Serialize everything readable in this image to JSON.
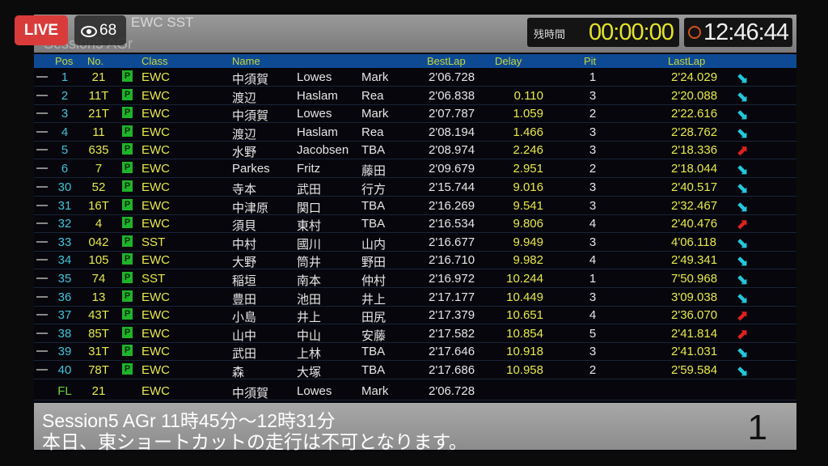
{
  "overlay": {
    "live_label": "LIVE",
    "viewer_count": "68"
  },
  "header": {
    "category": "EWC SST",
    "session": "Session5 AGr",
    "remaining_label": "残時間",
    "remaining_time": "00:00:00",
    "clock_time": "12:46:44"
  },
  "columns": {
    "pos": "Pos",
    "no": "No.",
    "class": "Class",
    "name": "Name",
    "bestlap": "BestLap",
    "delay": "Delay",
    "pit": "Pit",
    "lastlap": "LastLap"
  },
  "colors": {
    "trend_down": "#22c8dc",
    "trend_up": "#e02020",
    "accent_yellow": "#e8e84a",
    "header_blue": "#0e4a94"
  },
  "rows": [
    {
      "pos": "1",
      "no": "21",
      "p": "P",
      "class": "EWC",
      "n1": "中須賀",
      "n2": "Lowes",
      "n3": "Mark",
      "best": "2'06.728",
      "delay": "",
      "pit": "1",
      "last": "2'24.029",
      "trend": "down"
    },
    {
      "pos": "2",
      "no": "11T",
      "p": "P",
      "class": "EWC",
      "n1": "渡辺",
      "n2": "Haslam",
      "n3": "Rea",
      "best": "2'06.838",
      "delay": "0.110",
      "pit": "3",
      "last": "2'20.088",
      "trend": "down"
    },
    {
      "pos": "3",
      "no": "21T",
      "p": "P",
      "class": "EWC",
      "n1": "中須賀",
      "n2": "Lowes",
      "n3": "Mark",
      "best": "2'07.787",
      "delay": "1.059",
      "pit": "2",
      "last": "2'22.616",
      "trend": "down"
    },
    {
      "pos": "4",
      "no": "11",
      "p": "P",
      "class": "EWC",
      "n1": "渡辺",
      "n2": "Haslam",
      "n3": "Rea",
      "best": "2'08.194",
      "delay": "1.466",
      "pit": "3",
      "last": "2'28.762",
      "trend": "down"
    },
    {
      "pos": "5",
      "no": "635",
      "p": "P",
      "class": "EWC",
      "n1": "水野",
      "n2": "Jacobsen",
      "n3": "TBA",
      "best": "2'08.974",
      "delay": "2.246",
      "pit": "3",
      "last": "2'18.336",
      "trend": "up"
    },
    {
      "pos": "6",
      "no": "7",
      "p": "P",
      "class": "EWC",
      "n1": "Parkes",
      "n2": "Fritz",
      "n3": "藤田",
      "best": "2'09.679",
      "delay": "2.951",
      "pit": "2",
      "last": "2'18.044",
      "trend": "down"
    },
    {
      "pos": "30",
      "no": "52",
      "p": "P",
      "class": "EWC",
      "n1": "寺本",
      "n2": "武田",
      "n3": "行方",
      "best": "2'15.744",
      "delay": "9.016",
      "pit": "3",
      "last": "2'40.517",
      "trend": "down"
    },
    {
      "pos": "31",
      "no": "16T",
      "p": "P",
      "class": "EWC",
      "n1": "中津原",
      "n2": "関口",
      "n3": "TBA",
      "best": "2'16.269",
      "delay": "9.541",
      "pit": "3",
      "last": "2'32.467",
      "trend": "down"
    },
    {
      "pos": "32",
      "no": "4",
      "p": "P",
      "class": "EWC",
      "n1": "須貝",
      "n2": "東村",
      "n3": "TBA",
      "best": "2'16.534",
      "delay": "9.806",
      "pit": "4",
      "last": "2'40.476",
      "trend": "up"
    },
    {
      "pos": "33",
      "no": "042",
      "p": "P",
      "class": "SST",
      "n1": "中村",
      "n2": "國川",
      "n3": "山内",
      "best": "2'16.677",
      "delay": "9.949",
      "pit": "3",
      "last": "4'06.118",
      "trend": "down"
    },
    {
      "pos": "34",
      "no": "105",
      "p": "P",
      "class": "EWC",
      "n1": "大野",
      "n2": "筒井",
      "n3": "野田",
      "best": "2'16.710",
      "delay": "9.982",
      "pit": "4",
      "last": "2'49.341",
      "trend": "down"
    },
    {
      "pos": "35",
      "no": "74",
      "p": "P",
      "class": "SST",
      "n1": "稲垣",
      "n2": "南本",
      "n3": "仲村",
      "best": "2'16.972",
      "delay": "10.244",
      "pit": "1",
      "last": "7'50.968",
      "trend": "down"
    },
    {
      "pos": "36",
      "no": "13",
      "p": "P",
      "class": "EWC",
      "n1": "豊田",
      "n2": "池田",
      "n3": "井上",
      "best": "2'17.177",
      "delay": "10.449",
      "pit": "3",
      "last": "3'09.038",
      "trend": "down"
    },
    {
      "pos": "37",
      "no": "43T",
      "p": "P",
      "class": "EWC",
      "n1": "小島",
      "n2": "井上",
      "n3": "田尻",
      "best": "2'17.379",
      "delay": "10.651",
      "pit": "4",
      "last": "2'36.070",
      "trend": "up"
    },
    {
      "pos": "38",
      "no": "85T",
      "p": "P",
      "class": "EWC",
      "n1": "山中",
      "n2": "中山",
      "n3": "安藤",
      "best": "2'17.582",
      "delay": "10.854",
      "pit": "5",
      "last": "2'41.814",
      "trend": "up"
    },
    {
      "pos": "39",
      "no": "31T",
      "p": "P",
      "class": "EWC",
      "n1": "武田",
      "n2": "上林",
      "n3": "TBA",
      "best": "2'17.646",
      "delay": "10.918",
      "pit": "3",
      "last": "2'41.031",
      "trend": "down"
    },
    {
      "pos": "40",
      "no": "78T",
      "p": "P",
      "class": "EWC",
      "n1": "森",
      "n2": "大塚",
      "n3": "TBA",
      "best": "2'17.686",
      "delay": "10.958",
      "pit": "2",
      "last": "2'59.584",
      "trend": "down"
    }
  ],
  "fastest": {
    "pos": "FL",
    "no": "21",
    "class": "EWC",
    "n1": "中須賀",
    "n2": "Lowes",
    "n3": "Mark",
    "best": "2'06.728"
  },
  "message": {
    "line1": "Session5 AGr 11時45分～12時31分",
    "line2": "本日、東ショートカットの走行は不可となります。",
    "page": "1"
  }
}
